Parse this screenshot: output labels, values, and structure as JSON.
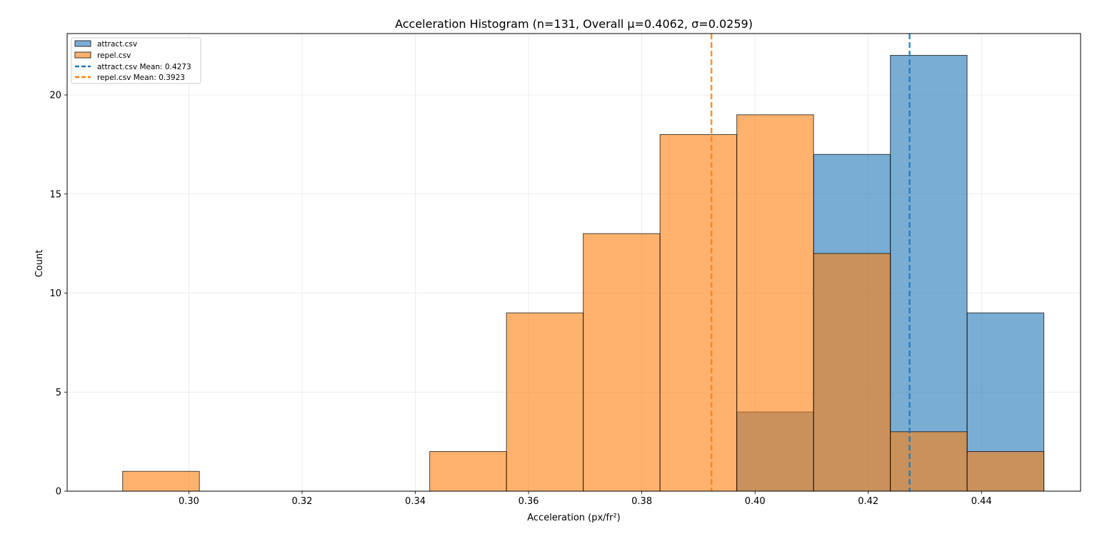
{
  "chart_data": {
    "type": "bar",
    "title": "Acceleration Histogram (n=131, Overall μ=0.4062, σ=0.0259)",
    "xlabel": "Acceleration (px/fr²)",
    "ylabel": "Count",
    "xlim": [
      0.2785,
      0.4575
    ],
    "ylim": [
      0,
      23.1
    ],
    "xticks": [
      0.3,
      0.32,
      0.34,
      0.36,
      0.38,
      0.4,
      0.42,
      0.44
    ],
    "xtick_labels": [
      "0.30",
      "0.32",
      "0.34",
      "0.36",
      "0.38",
      "0.40",
      "0.42",
      "0.44"
    ],
    "yticks": [
      0,
      5,
      10,
      15,
      20
    ],
    "ytick_labels": [
      "0",
      "5",
      "10",
      "15",
      "20"
    ],
    "grid": true,
    "legend_position": "top-left",
    "bin_edges": [
      0.2883,
      0.30186,
      0.31542,
      0.32898,
      0.34254,
      0.3561,
      0.36966,
      0.38322,
      0.39678,
      0.41034,
      0.4239,
      0.43746,
      0.45102
    ],
    "series": [
      {
        "name": "attract.csv",
        "color": "#1f77b4",
        "counts": [
          0,
          0,
          0,
          0,
          0,
          0,
          0,
          0,
          4,
          17,
          22,
          9
        ]
      },
      {
        "name": "repel.csv",
        "color": "#ff7f0e",
        "counts": [
          1,
          0,
          0,
          0,
          2,
          9,
          13,
          18,
          19,
          12,
          3,
          2
        ]
      }
    ],
    "mean_lines": [
      {
        "name": "attract.csv Mean: 0.4273",
        "value": 0.4273,
        "color": "#1f77b4"
      },
      {
        "name": "repel.csv Mean: 0.3923",
        "value": 0.3923,
        "color": "#ff7f0e"
      }
    ]
  }
}
